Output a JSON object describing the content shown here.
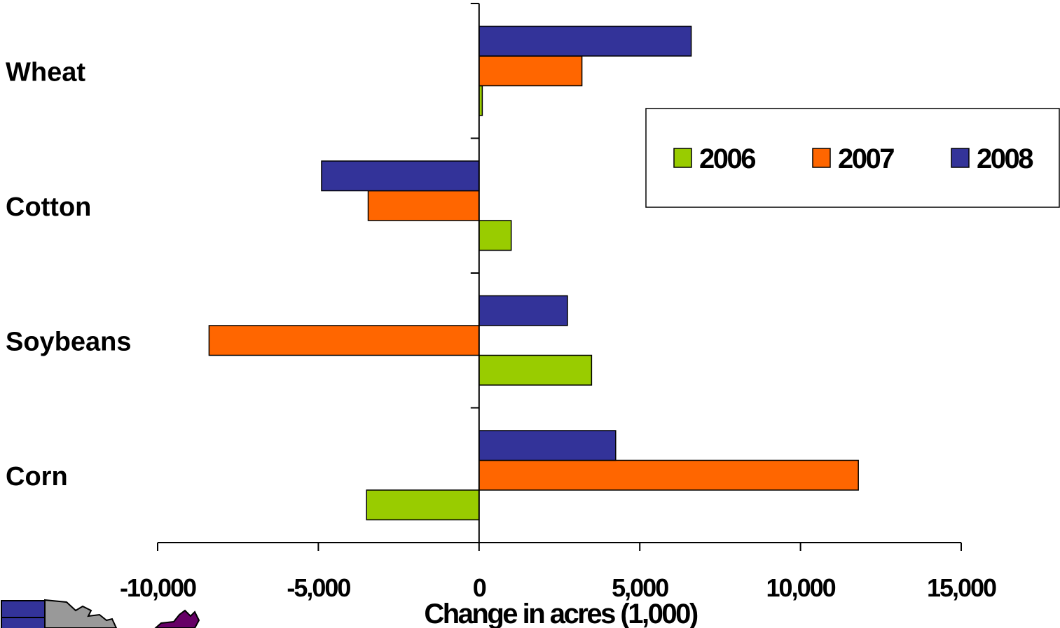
{
  "chart_data": {
    "type": "bar",
    "orientation": "horizontal",
    "categories": [
      "Corn",
      "Soybeans",
      "Cotton",
      "Wheat"
    ],
    "series": [
      {
        "name": "2006",
        "color": "#99cc00",
        "values": [
          -3500,
          3500,
          1000,
          100
        ]
      },
      {
        "name": "2007",
        "color": "#ff6600",
        "values": [
          11800,
          -8400,
          -3450,
          3200
        ]
      },
      {
        "name": "2008",
        "color": "#333399",
        "values": [
          4250,
          2750,
          -4900,
          6600
        ]
      }
    ],
    "xlabel": "Change in acres (1,000)",
    "xlim": [
      -10000,
      15000
    ],
    "xticks": [
      -10000,
      -5000,
      0,
      5000,
      10000,
      15000
    ],
    "xtick_labels": [
      "-10,000",
      "-5,000",
      "0",
      "5,000",
      "10,000",
      "15,000"
    ],
    "grid": false,
    "legend_position": "top-right"
  }
}
